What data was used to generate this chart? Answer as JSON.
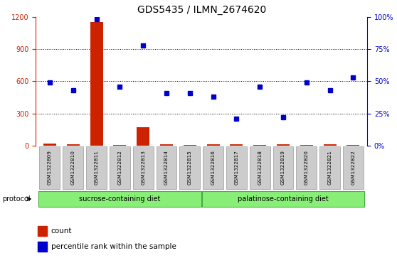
{
  "title": "GDS5435 / ILMN_2674620",
  "samples": [
    "GSM1322809",
    "GSM1322810",
    "GSM1322811",
    "GSM1322812",
    "GSM1322813",
    "GSM1322814",
    "GSM1322815",
    "GSM1322816",
    "GSM1322817",
    "GSM1322818",
    "GSM1322819",
    "GSM1322820",
    "GSM1322821",
    "GSM1322822"
  ],
  "counts": [
    18,
    12,
    1150,
    10,
    175,
    15,
    10,
    15,
    12,
    10,
    12,
    10,
    12,
    10
  ],
  "percentiles": [
    49,
    43,
    98,
    46,
    78,
    41,
    41,
    38,
    21,
    46,
    22,
    49,
    43,
    53
  ],
  "left_ylim": [
    0,
    1200
  ],
  "right_ylim": [
    0,
    100
  ],
  "left_yticks": [
    0,
    300,
    600,
    900,
    1200
  ],
  "right_yticks": [
    0,
    25,
    50,
    75,
    100
  ],
  "right_yticklabels": [
    "0%",
    "25%",
    "50%",
    "75%",
    "100%"
  ],
  "left_color": "#cc2200",
  "right_color": "#0000cc",
  "bar_color": "#cc2200",
  "dot_color": "#0000cc",
  "sucrose_samples": 7,
  "sucrose_label": "sucrose-containing diet",
  "palatinose_label": "palatinose-containing diet",
  "protocol_label": "protocol",
  "legend_count": "count",
  "legend_percentile": "percentile rank within the sample",
  "group_color": "#88ee77",
  "sample_box_color": "#cccccc",
  "title_fontsize": 10,
  "tick_fontsize": 7,
  "label_fontsize": 7.5
}
